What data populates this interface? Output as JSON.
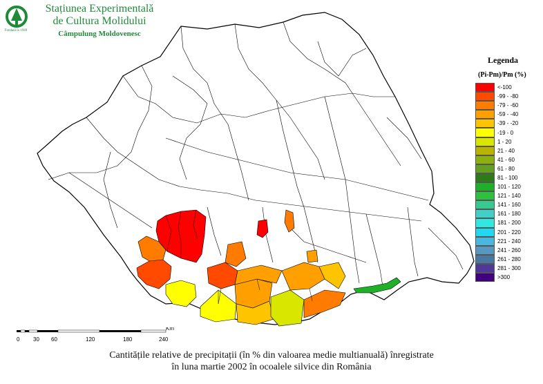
{
  "header": {
    "line1": "Stațiunea Experimentală",
    "line2": "de Cultura Molidului",
    "line3": "Câmpulung Moldovenesc",
    "logo_text": "Fondată în 1949"
  },
  "legend": {
    "title": "Legenda",
    "subtitle": "(Pi-Pm)/Pm (%)",
    "items": [
      {
        "label": "<-100",
        "color": "#ff0000"
      },
      {
        "label": "-99 - -80",
        "color": "#ff4a00"
      },
      {
        "label": "-79 - -60",
        "color": "#ff7c00"
      },
      {
        "label": "-59 - -40",
        "color": "#ffa000"
      },
      {
        "label": "-39 - -20",
        "color": "#ffc400"
      },
      {
        "label": "-19 - 0",
        "color": "#ffff00"
      },
      {
        "label": "1 - 20",
        "color": "#d8e600"
      },
      {
        "label": "21 - 40",
        "color": "#b8b400"
      },
      {
        "label": "41 - 60",
        "color": "#8cb010"
      },
      {
        "label": "61 - 80",
        "color": "#64a020"
      },
      {
        "label": "81 - 100",
        "color": "#2e7a18"
      },
      {
        "label": "101 - 120",
        "color": "#1eb028"
      },
      {
        "label": "121 - 140",
        "color": "#30c040"
      },
      {
        "label": "141 - 160",
        "color": "#38c890"
      },
      {
        "label": "161 - 180",
        "color": "#40d0c8"
      },
      {
        "label": "181 - 200",
        "color": "#30e8e0"
      },
      {
        "label": "201 - 220",
        "color": "#20d8f0"
      },
      {
        "label": "221 - 240",
        "color": "#48b8e0"
      },
      {
        "label": "241 - 260",
        "color": "#5898c0"
      },
      {
        "label": "261 - 280",
        "color": "#4878a0"
      },
      {
        "label": "281 - 300",
        "color": "#503898"
      },
      {
        "label": ">300",
        "color": "#400080"
      }
    ]
  },
  "scalebar": {
    "unit": "Km",
    "ticks": [
      "0",
      "30",
      "60",
      "120",
      "180",
      "240"
    ]
  },
  "caption": {
    "line1": "Cantitățile relative de precipitații (în % din valoarea medie multianuală) înregistrate",
    "line2": "în luna martie 2002 în ocoalele silvice din România"
  },
  "map": {
    "base_fill": "#ffffff",
    "border_color": "#000000"
  }
}
